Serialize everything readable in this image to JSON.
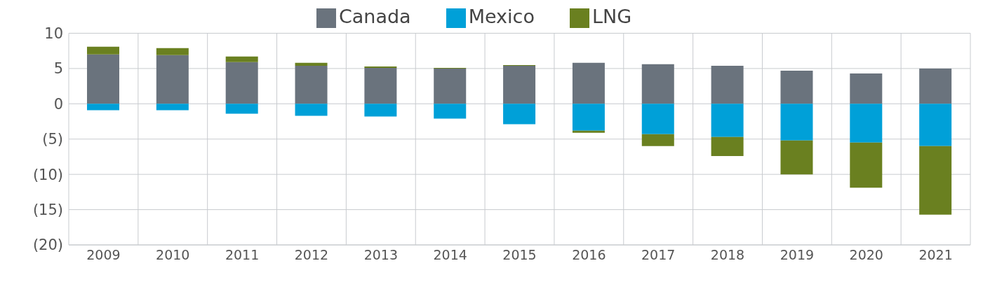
{
  "chart_data": {
    "type": "bar",
    "stacked": true,
    "categories": [
      "2009",
      "2010",
      "2011",
      "2012",
      "2013",
      "2014",
      "2015",
      "2016",
      "2017",
      "2018",
      "2019",
      "2020",
      "2021"
    ],
    "series": [
      {
        "name": "Canada",
        "color": "#6a737d",
        "values": [
          7.0,
          6.9,
          5.9,
          5.4,
          5.1,
          5.0,
          5.4,
          5.8,
          5.6,
          5.4,
          4.7,
          4.3,
          5.0
        ]
      },
      {
        "name": "Mexico",
        "color": "#00a0d8",
        "values": [
          -0.9,
          -0.9,
          -1.4,
          -1.7,
          -1.8,
          -2.1,
          -2.9,
          -3.8,
          -4.3,
          -4.7,
          -5.2,
          -5.5,
          -6.0
        ]
      },
      {
        "name": "LNG",
        "color": "#6a8020",
        "values": [
          1.1,
          1.0,
          0.8,
          0.4,
          0.2,
          0.1,
          0.1,
          -0.3,
          -1.7,
          -2.7,
          -4.8,
          -6.4,
          -9.7
        ]
      }
    ],
    "ylim": [
      -20,
      10
    ],
    "yticks": [
      10,
      5,
      0,
      {
        "value": -5,
        "label": "(5)"
      },
      {
        "value": -10,
        "label": "(10)"
      },
      {
        "value": -15,
        "label": "(15)"
      },
      {
        "value": -20,
        "label": "(20)"
      }
    ],
    "grid": true,
    "legend": "top"
  }
}
